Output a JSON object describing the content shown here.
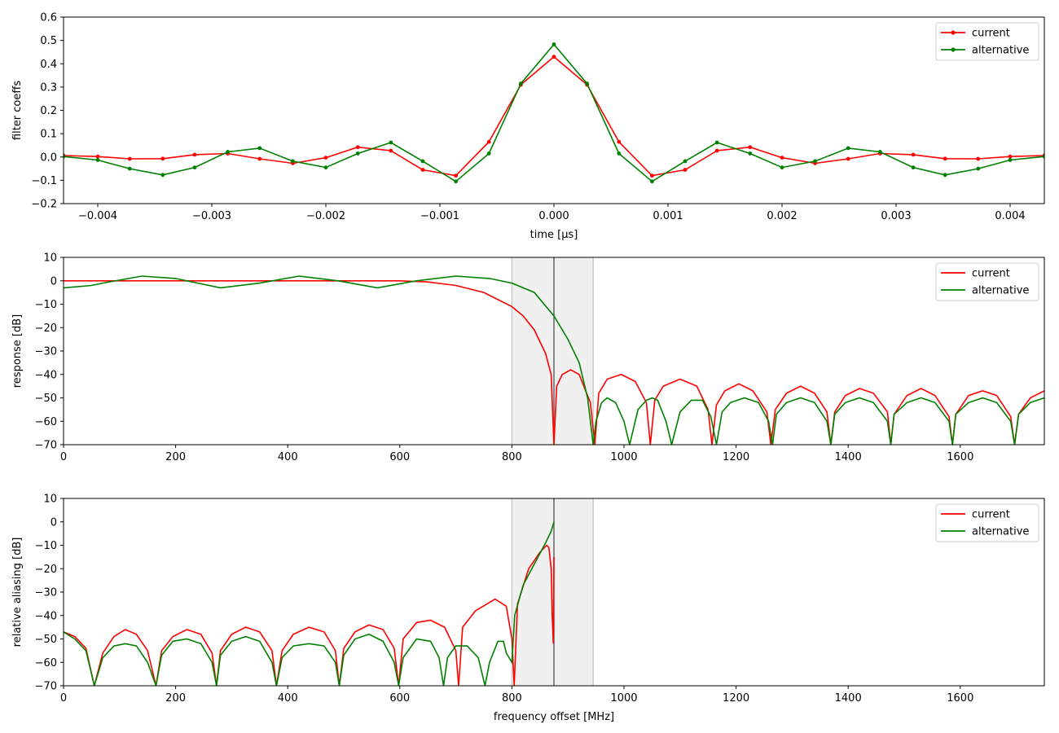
{
  "colors": {
    "current": "#ff0000",
    "alternative": "#008000",
    "band_fill": "#f0f0f0",
    "band_edge": "#cccccc",
    "center_line": "#666666"
  },
  "chart_data": [
    {
      "type": "line",
      "xlabel": "time [μs]",
      "ylabel": "filter coeffs",
      "xlim": [
        -0.0043,
        0.0043
      ],
      "ylim": [
        -0.2,
        0.6
      ],
      "xticks": [
        -0.004,
        -0.003,
        -0.002,
        -0.001,
        0.0,
        0.001,
        0.002,
        0.003,
        0.004
      ],
      "xtick_labels": [
        "−0.004",
        "−0.003",
        "−0.002",
        "−0.001",
        "0.000",
        "0.001",
        "0.002",
        "0.003",
        "0.004"
      ],
      "yticks": [
        -0.2,
        -0.1,
        0.0,
        0.1,
        0.2,
        0.3,
        0.4,
        0.5,
        0.6
      ],
      "ytick_labels": [
        "−0.2",
        "−0.1",
        "0.0",
        "0.1",
        "0.2",
        "0.3",
        "0.4",
        "0.5",
        "0.6"
      ],
      "legend": "top-right",
      "markers": true,
      "series": [
        {
          "name": "current",
          "color": "#ff0000",
          "x": [
            -0.0043,
            -0.004,
            -0.00372,
            -0.00343,
            -0.00315,
            -0.00286,
            -0.00258,
            -0.00229,
            -0.002,
            -0.00172,
            -0.00143,
            -0.00115,
            -0.00086,
            -0.00057,
            -0.00029,
            0.0,
            0.00029,
            0.00057,
            0.00086,
            0.00115,
            0.00143,
            0.00172,
            0.002,
            0.00229,
            0.00258,
            0.00286,
            0.00315,
            0.00343,
            0.00372,
            0.004,
            0.0043
          ],
          "y": [
            0.006,
            0.002,
            -0.008,
            -0.007,
            0.01,
            0.015,
            -0.008,
            -0.027,
            -0.003,
            0.042,
            0.027,
            -0.055,
            -0.08,
            0.065,
            0.31,
            0.43,
            0.31,
            0.065,
            -0.08,
            -0.055,
            0.027,
            0.042,
            -0.003,
            -0.027,
            -0.008,
            0.015,
            0.01,
            -0.007,
            -0.008,
            0.002,
            0.006
          ]
        },
        {
          "name": "alternative",
          "color": "#008000",
          "x": [
            -0.0043,
            -0.004,
            -0.00372,
            -0.00343,
            -0.00315,
            -0.00286,
            -0.00258,
            -0.00229,
            -0.002,
            -0.00172,
            -0.00143,
            -0.00115,
            -0.00086,
            -0.00057,
            -0.00029,
            0.0,
            0.00029,
            0.00057,
            0.00086,
            0.00115,
            0.00143,
            0.00172,
            0.002,
            0.00229,
            0.00258,
            0.00286,
            0.00315,
            0.00343,
            0.00372,
            0.004,
            0.0043
          ],
          "y": [
            0.002,
            -0.013,
            -0.05,
            -0.077,
            -0.045,
            0.022,
            0.038,
            -0.018,
            -0.045,
            0.015,
            0.062,
            -0.018,
            -0.105,
            0.015,
            0.315,
            0.483,
            0.315,
            0.015,
            -0.105,
            -0.018,
            0.062,
            0.015,
            -0.045,
            -0.018,
            0.038,
            0.022,
            -0.045,
            -0.077,
            -0.05,
            -0.013,
            0.002
          ]
        }
      ]
    },
    {
      "type": "line",
      "xlabel": "",
      "ylabel": "response [dB]",
      "xlim": [
        0,
        1750
      ],
      "ylim": [
        -70,
        10
      ],
      "xticks": [
        0,
        200,
        400,
        600,
        800,
        1000,
        1200,
        1400,
        1600
      ],
      "xtick_labels": [
        "0",
        "200",
        "400",
        "600",
        "800",
        "1000",
        "1200",
        "1400",
        "1600"
      ],
      "yticks": [
        -70,
        -60,
        -50,
        -40,
        -30,
        -20,
        -10,
        0,
        10
      ],
      "ytick_labels": [
        "−70",
        "−60",
        "−50",
        "−40",
        "−30",
        "−20",
        "−10",
        "0",
        "10"
      ],
      "legend": "top-right",
      "shaded_band": [
        800,
        945
      ],
      "center_line": 875,
      "series": [
        {
          "name": "current",
          "color": "#ff0000",
          "x": [
            0,
            100,
            200,
            300,
            400,
            500,
            600,
            650,
            700,
            750,
            800,
            820,
            840,
            860,
            870,
            875,
            880,
            890,
            905,
            920,
            940,
            948,
            955,
            970,
            995,
            1020,
            1040,
            1047,
            1055,
            1070,
            1100,
            1130,
            1150,
            1157,
            1165,
            1180,
            1205,
            1230,
            1255,
            1262,
            1270,
            1290,
            1315,
            1340,
            1362,
            1369,
            1376,
            1395,
            1420,
            1445,
            1470,
            1476,
            1482,
            1505,
            1530,
            1555,
            1580,
            1586,
            1592,
            1615,
            1640,
            1665,
            1690,
            1697,
            1704,
            1725,
            1750
          ],
          "y": [
            0,
            0,
            0,
            0,
            0,
            0,
            0,
            -0.5,
            -2,
            -5,
            -11,
            -15,
            -21,
            -31,
            -40,
            -70,
            -45,
            -40,
            -38,
            -40,
            -52,
            -70,
            -48,
            -42,
            -40,
            -43,
            -52,
            -70,
            -51,
            -45,
            -42,
            -45,
            -55,
            -70,
            -53,
            -47,
            -44,
            -47,
            -56,
            -70,
            -55,
            -48,
            -45,
            -48,
            -56,
            -70,
            -56,
            -49,
            -46,
            -48,
            -56,
            -70,
            -57,
            -49,
            -46,
            -49,
            -58,
            -70,
            -57,
            -49,
            -47,
            -49,
            -58,
            -70,
            -57,
            -50,
            -47
          ]
        },
        {
          "name": "alternative",
          "color": "#008000",
          "x": [
            0,
            50,
            70,
            140,
            200,
            280,
            350,
            420,
            490,
            560,
            630,
            700,
            760,
            800,
            840,
            875,
            900,
            920,
            935,
            945,
            950,
            960,
            970,
            985,
            1000,
            1010,
            1025,
            1040,
            1050,
            1060,
            1075,
            1085,
            1100,
            1120,
            1140,
            1155,
            1165,
            1175,
            1190,
            1215,
            1240,
            1258,
            1265,
            1272,
            1290,
            1315,
            1340,
            1362,
            1369,
            1376,
            1395,
            1420,
            1445,
            1470,
            1476,
            1482,
            1505,
            1530,
            1555,
            1580,
            1586,
            1592,
            1615,
            1640,
            1665,
            1690,
            1697,
            1704,
            1725,
            1750
          ],
          "y": [
            -3,
            -2,
            -1,
            2,
            1,
            -3,
            -1,
            2,
            0,
            -3,
            0,
            2,
            1,
            -1,
            -5,
            -15,
            -25,
            -35,
            -50,
            -70,
            -60,
            -52,
            -50,
            -52,
            -60,
            -70,
            -55,
            -51,
            -50,
            -51,
            -60,
            -70,
            -56,
            -51,
            -51,
            -58,
            -70,
            -56,
            -52,
            -50,
            -52,
            -60,
            -70,
            -57,
            -52,
            -50,
            -52,
            -60,
            -70,
            -57,
            -52,
            -50,
            -52,
            -60,
            -70,
            -57,
            -52,
            -50,
            -52,
            -60,
            -70,
            -57,
            -52,
            -50,
            -52,
            -60,
            -70,
            -57,
            -52,
            -50
          ]
        }
      ]
    },
    {
      "type": "line",
      "xlabel": "frequency offset [MHz]",
      "ylabel": "relative aliasing [dB]",
      "xlim": [
        0,
        1750
      ],
      "ylim": [
        -70,
        10
      ],
      "xticks": [
        0,
        200,
        400,
        600,
        800,
        1000,
        1200,
        1400,
        1600
      ],
      "xtick_labels": [
        "0",
        "200",
        "400",
        "600",
        "800",
        "1000",
        "1200",
        "1400",
        "1600"
      ],
      "yticks": [
        -70,
        -60,
        -50,
        -40,
        -30,
        -20,
        -10,
        0,
        10
      ],
      "ytick_labels": [
        "−70",
        "−60",
        "−50",
        "−40",
        "−30",
        "−20",
        "−10",
        "0",
        "10"
      ],
      "legend": "top-right",
      "shaded_band": [
        800,
        945
      ],
      "center_line": 875,
      "series": [
        {
          "name": "current",
          "color": "#ff0000",
          "x": [
            0,
            20,
            40,
            55,
            70,
            90,
            110,
            130,
            150,
            165,
            175,
            195,
            220,
            245,
            265,
            273,
            280,
            300,
            325,
            350,
            372,
            380,
            390,
            410,
            438,
            465,
            485,
            492,
            500,
            520,
            545,
            570,
            590,
            598,
            606,
            630,
            655,
            680,
            700,
            705,
            712,
            735,
            770,
            790,
            800,
            804,
            810,
            830,
            850,
            862,
            866,
            870,
            872,
            874,
            875
          ],
          "y": [
            -47,
            -49,
            -54,
            -70,
            -56,
            -49,
            -46,
            -48,
            -55,
            -70,
            -55,
            -49,
            -46,
            -48,
            -56,
            -70,
            -55,
            -48,
            -45,
            -47,
            -55,
            -70,
            -55,
            -48,
            -45,
            -47,
            -55,
            -70,
            -54,
            -47,
            -44,
            -46,
            -54,
            -70,
            -50,
            -43,
            -42,
            -45,
            -55,
            -70,
            -45,
            -38,
            -33,
            -36,
            -50,
            -70,
            -35,
            -20,
            -13,
            -10,
            -11,
            -20,
            -40,
            -52,
            -15
          ]
        },
        {
          "name": "alternative",
          "color": "#008000",
          "x": [
            0,
            20,
            40,
            55,
            70,
            90,
            110,
            130,
            150,
            165,
            175,
            195,
            220,
            245,
            265,
            273,
            280,
            300,
            325,
            350,
            372,
            380,
            390,
            410,
            438,
            465,
            485,
            492,
            500,
            520,
            545,
            570,
            590,
            598,
            606,
            630,
            655,
            670,
            678,
            685,
            700,
            720,
            740,
            752,
            760,
            775,
            785,
            790,
            800,
            805,
            820,
            840,
            860,
            870,
            875
          ],
          "y": [
            -47,
            -50,
            -55,
            -70,
            -58,
            -53,
            -52,
            -53,
            -60,
            -70,
            -57,
            -51,
            -50,
            -52,
            -60,
            -70,
            -57,
            -51,
            -49,
            -51,
            -60,
            -70,
            -58,
            -53,
            -52,
            -53,
            -60,
            -70,
            -57,
            -50,
            -48,
            -51,
            -60,
            -70,
            -58,
            -50,
            -51,
            -58,
            -70,
            -58,
            -53,
            -53,
            -58,
            -70,
            -60,
            -51,
            -51,
            -56,
            -60,
            -40,
            -27,
            -18,
            -9,
            -4,
            0
          ]
        }
      ]
    }
  ]
}
